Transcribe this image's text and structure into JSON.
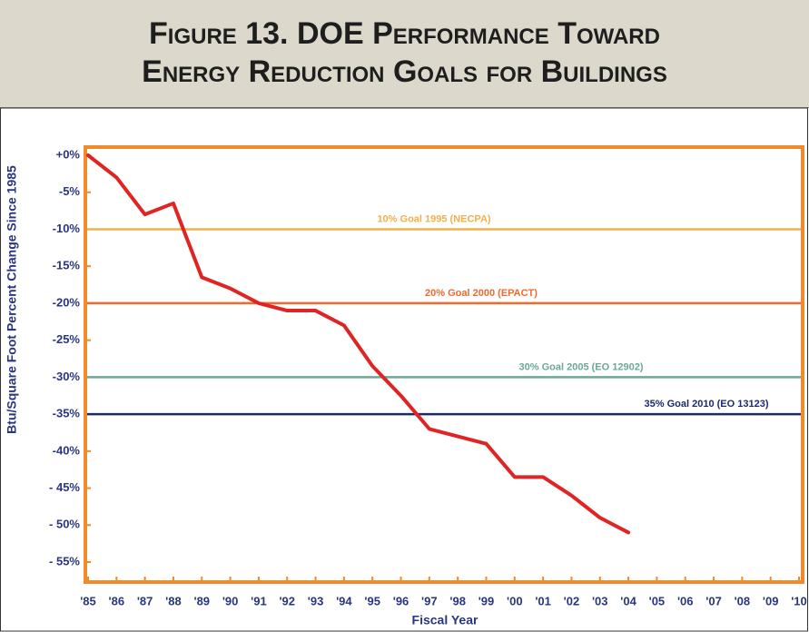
{
  "chart_data": {
    "type": "line",
    "title_lines": [
      "Figure 13. DOE Performance Toward",
      "Energy Reduction Goals for Buildings"
    ],
    "y_label": "Btu/Square Foot Percent Change Since 1985",
    "x_label": "Fiscal Year",
    "categories": [
      "'85",
      "'86",
      "'87",
      "'88",
      "'89",
      "'90",
      "'91",
      "'92",
      "'93",
      "'94",
      "'95",
      "'96",
      "'97",
      "'98",
      "'99",
      "'00",
      "'01",
      "'02",
      "'03",
      "'04",
      "'05",
      "'06",
      "'07",
      "'08",
      "'09",
      "'10"
    ],
    "series": [
      {
        "name": "DOE Performance",
        "color": "#e02424",
        "values": [
          0,
          -3,
          -8,
          -6.5,
          -16.5,
          -18,
          -20,
          -21,
          -21,
          -23,
          -28.5,
          -32.5,
          -37,
          -38,
          -39,
          -43.5,
          -43.5,
          -46,
          -49,
          -51,
          null,
          null,
          null,
          null,
          null,
          null
        ]
      }
    ],
    "goals": [
      {
        "value": -10,
        "label": "10% Goal 1995 (NECPA)",
        "color": "#f3b04a"
      },
      {
        "value": -20,
        "label": "20% Goal 2000 (EPACT)",
        "color": "#ef6a2c"
      },
      {
        "value": -30,
        "label": "30% Goal 2005 (EO 12902)",
        "color": "#6aa898"
      },
      {
        "value": -35,
        "label": "35% Goal 2010 (EO 13123)",
        "color": "#1c2a6a"
      }
    ],
    "ylim": [
      -55,
      0
    ],
    "yticks": [
      {
        "value": 0,
        "label": "+0%"
      },
      {
        "value": -5,
        "label": "-5%"
      },
      {
        "value": -10,
        "label": "-10%"
      },
      {
        "value": -15,
        "label": "-15%"
      },
      {
        "value": -20,
        "label": "-20%"
      },
      {
        "value": -25,
        "label": "-25%"
      },
      {
        "value": -30,
        "label": "-30%"
      },
      {
        "value": -35,
        "label": "-35%"
      },
      {
        "value": -40,
        "label": "-40%"
      },
      {
        "value": -45,
        "label": "- 45%"
      },
      {
        "value": -50,
        "label": "- 50%"
      },
      {
        "value": -55,
        "label": "- 55%"
      }
    ],
    "frame_color": "#f08a2a"
  }
}
